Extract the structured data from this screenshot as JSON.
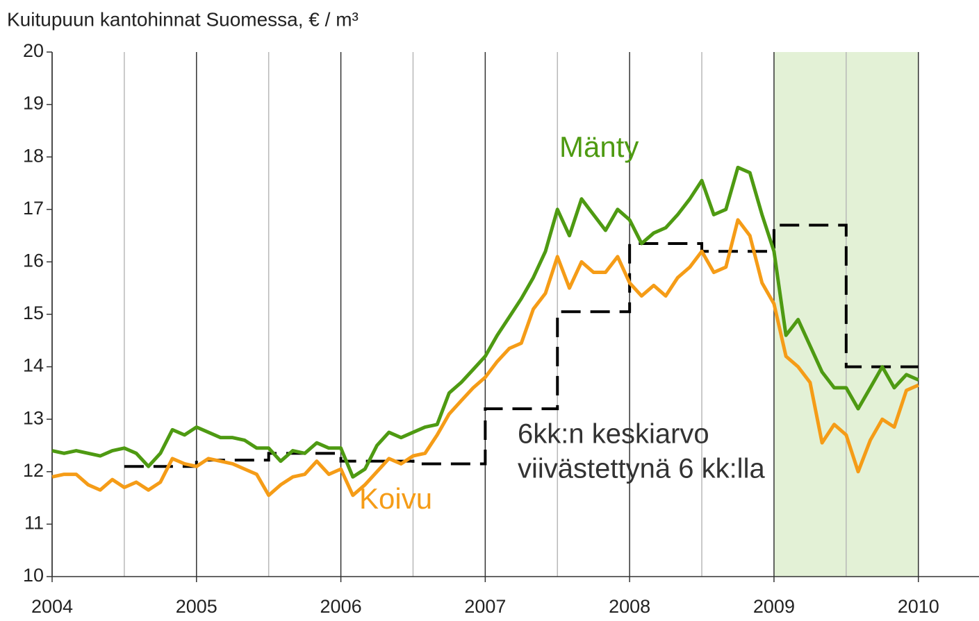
{
  "chart_data": {
    "type": "line",
    "title": "Kuitupuun kantohinnat Suomessa, € / m³",
    "xlim": [
      2004,
      2010.42
    ],
    "ylim": [
      10,
      20
    ],
    "xticks": [
      2004,
      2005,
      2006,
      2007,
      2008,
      2009,
      2010
    ],
    "xminor": [
      2004.5,
      2005.5,
      2006.5,
      2007.5,
      2008.5,
      2009.5
    ],
    "yticks": [
      10,
      11,
      12,
      13,
      14,
      15,
      16,
      17,
      18,
      19,
      20
    ],
    "shade": [
      2009,
      2010
    ],
    "shade_color": "#e3f1d6",
    "x": [
      2004,
      2004.083,
      2004.167,
      2004.25,
      2004.333,
      2004.417,
      2004.5,
      2004.583,
      2004.667,
      2004.75,
      2004.833,
      2004.917,
      2005,
      2005.083,
      2005.167,
      2005.25,
      2005.333,
      2005.417,
      2005.5,
      2005.583,
      2005.667,
      2005.75,
      2005.833,
      2005.917,
      2006,
      2006.083,
      2006.167,
      2006.25,
      2006.333,
      2006.417,
      2006.5,
      2006.583,
      2006.667,
      2006.75,
      2006.833,
      2006.917,
      2007,
      2007.083,
      2007.167,
      2007.25,
      2007.333,
      2007.417,
      2007.5,
      2007.583,
      2007.667,
      2007.75,
      2007.833,
      2007.917,
      2008,
      2008.083,
      2008.167,
      2008.25,
      2008.333,
      2008.417,
      2008.5,
      2008.583,
      2008.667,
      2008.75,
      2008.833,
      2008.917,
      2009,
      2009.083,
      2009.167,
      2009.25,
      2009.333,
      2009.417,
      2009.5,
      2009.583,
      2009.667,
      2009.75,
      2009.833,
      2009.917,
      2010
    ],
    "series": [
      {
        "name": "Mänty",
        "color": "#4e9a12",
        "values": [
          12.4,
          12.35,
          12.4,
          12.35,
          12.3,
          12.4,
          12.45,
          12.35,
          12.1,
          12.35,
          12.8,
          12.7,
          12.85,
          12.75,
          12.65,
          12.65,
          12.6,
          12.45,
          12.45,
          12.2,
          12.4,
          12.35,
          12.55,
          12.45,
          12.45,
          11.9,
          12.05,
          12.5,
          12.75,
          12.65,
          12.75,
          12.85,
          12.9,
          13.5,
          13.7,
          13.95,
          14.2,
          14.6,
          14.95,
          15.3,
          15.7,
          16.2,
          17.0,
          16.5,
          17.2,
          16.9,
          16.6,
          17.0,
          16.8,
          16.35,
          16.55,
          16.65,
          16.9,
          17.2,
          17.55,
          16.9,
          17.0,
          17.8,
          17.7,
          16.9,
          16.2,
          14.6,
          14.9,
          14.4,
          13.9,
          13.6,
          13.6,
          13.2,
          13.6,
          14.0,
          13.6,
          13.85,
          13.75
        ]
      },
      {
        "name": "Koivu",
        "color": "#f59c17",
        "values": [
          11.9,
          11.95,
          11.95,
          11.75,
          11.65,
          11.85,
          11.7,
          11.8,
          11.65,
          11.8,
          12.25,
          12.15,
          12.1,
          12.25,
          12.2,
          12.15,
          12.05,
          11.95,
          11.55,
          11.75,
          11.9,
          11.95,
          12.2,
          11.95,
          12.05,
          11.55,
          11.75,
          12.0,
          12.25,
          12.15,
          12.3,
          12.35,
          12.7,
          13.1,
          13.35,
          13.6,
          13.8,
          14.1,
          14.35,
          14.45,
          15.1,
          15.4,
          16.1,
          15.5,
          16.0,
          15.8,
          15.8,
          16.1,
          15.6,
          15.35,
          15.55,
          15.35,
          15.7,
          15.9,
          16.2,
          15.8,
          15.9,
          16.8,
          16.5,
          15.6,
          15.2,
          14.2,
          14.0,
          13.7,
          12.55,
          12.9,
          12.7,
          12.0,
          12.6,
          13.0,
          12.85,
          13.55,
          13.65
        ]
      }
    ],
    "average": {
      "color": "#000000",
      "x": [
        2004.5,
        2005,
        2005.5,
        2006,
        2006.5,
        2007,
        2007.5,
        2008,
        2008.5,
        2009,
        2009.5
      ],
      "x_end": 2010,
      "values": [
        12.1,
        12.22,
        12.35,
        12.2,
        12.15,
        13.2,
        15.05,
        16.35,
        16.2,
        16.7,
        14.0
      ],
      "annotation": [
        "6kk:n keskiarvo",
        "viivästettynä 6 kk:lla"
      ]
    }
  }
}
